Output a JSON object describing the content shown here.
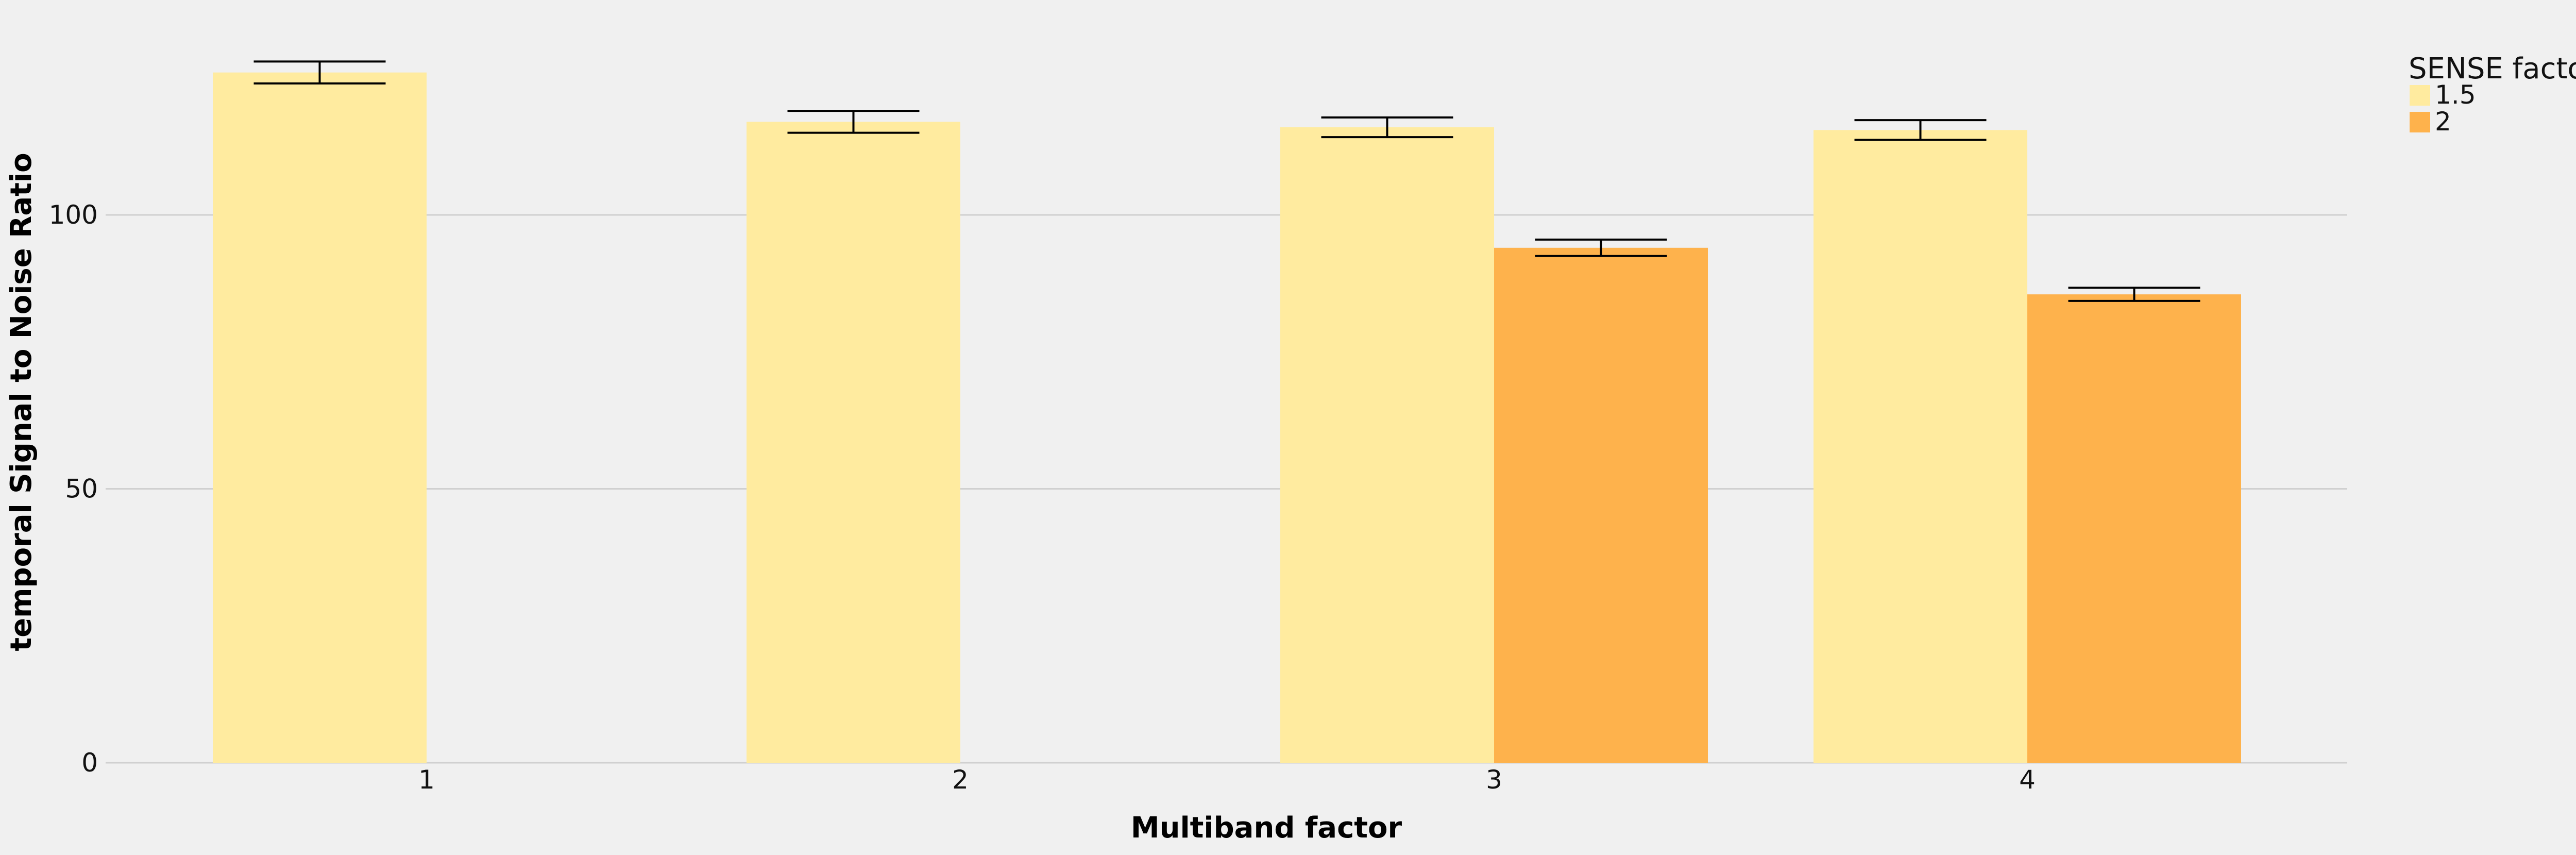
{
  "chart_data": {
    "type": "bar",
    "title": "",
    "xlabel": "Multiband factor",
    "ylabel": "temporal Signal to Noise Ratio",
    "categories": [
      "1",
      "2",
      "3",
      "4"
    ],
    "ylim": [
      0,
      135
    ],
    "yticks": [
      "0",
      "50",
      "100"
    ],
    "grid": true,
    "legend": {
      "title": "SENSE factor",
      "placement": "top-right outside"
    },
    "series": [
      {
        "name": "1.5",
        "color": "#ffeb9f",
        "values": [
          126,
          117,
          116,
          115.5
        ],
        "error": [
          2,
          2,
          1.8,
          1.8
        ]
      },
      {
        "name": "2",
        "color": "#feb24c",
        "values": [
          null,
          null,
          94,
          85.5
        ],
        "error": [
          null,
          null,
          1.5,
          1.2
        ]
      }
    ]
  }
}
